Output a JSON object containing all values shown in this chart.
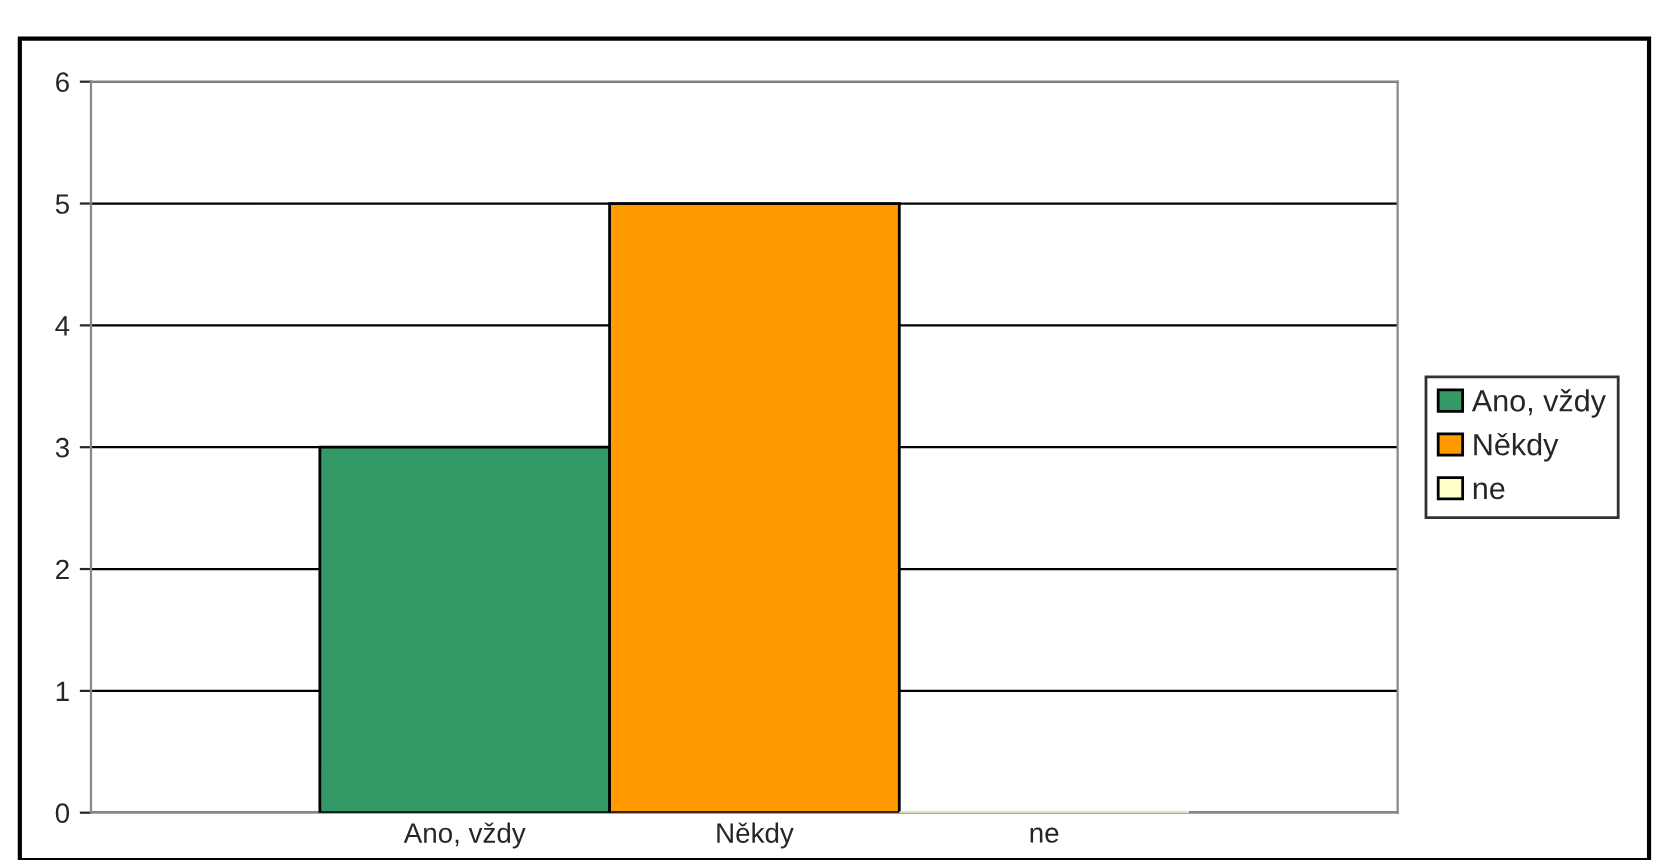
{
  "chart_data": {
    "type": "bar",
    "categories": [
      "Ano, vždy",
      "Někdy",
      "ne"
    ],
    "series": [
      {
        "name": "Ano, vždy",
        "color": "#339966",
        "values": [
          3,
          null,
          null
        ]
      },
      {
        "name": "Někdy",
        "color": "#ff9900",
        "values": [
          null,
          5,
          null
        ]
      },
      {
        "name": "ne",
        "color": "#ffffcc",
        "values": [
          null,
          null,
          0
        ]
      }
    ],
    "ylim": [
      0,
      6
    ],
    "yticks": [
      0,
      1,
      2,
      3,
      4,
      5,
      6
    ],
    "grid": "y",
    "legend": "right"
  }
}
